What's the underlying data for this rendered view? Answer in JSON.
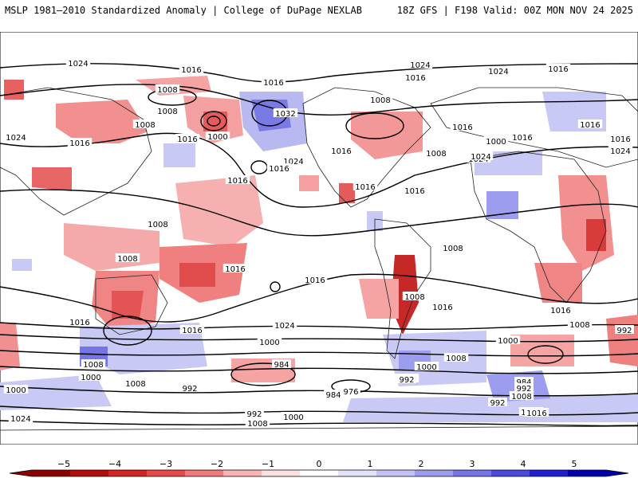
{
  "header": {
    "left_title": "MSLP 1981–2010 Standardized Anomaly | College of DuPage NEXLAB",
    "right_title": "18Z GFS | F198 Valid: 00Z MON NOV 24 2025"
  },
  "map": {
    "isobar_labels": [
      "1024",
      "1016",
      "1008",
      "1016",
      "1024",
      "1024",
      "1016",
      "1008",
      "1024",
      "1016",
      "1008",
      "1000",
      "1016",
      "1032",
      "1016",
      "1024",
      "1016",
      "1024",
      "1016",
      "1008",
      "1016",
      "1016",
      "1000",
      "1016",
      "1024",
      "1016",
      "1016",
      "1016",
      "1024",
      "1008",
      "1008",
      "1008",
      "1016",
      "1008",
      "1016",
      "1016",
      "1008",
      "1016",
      "1016",
      "1016",
      "1008",
      "1016",
      "1024",
      "992",
      "1000",
      "1000",
      "1008",
      "992",
      "984",
      "1008",
      "1008",
      "1000",
      "1000",
      "992",
      "1000",
      "984",
      "992",
      "1008",
      "1000",
      "976",
      "984",
      "992",
      "1016",
      "992",
      "1024",
      "1008",
      "1000",
      "1016"
    ]
  },
  "colorbar": {
    "ticks": [
      "−5",
      "−4",
      "−3",
      "−2",
      "−1",
      "0",
      "1",
      "2",
      "3",
      "4",
      "5"
    ],
    "colors": [
      "#8b0000",
      "#b50d0d",
      "#d62323",
      "#e84848",
      "#f37a7a",
      "#fbb3b3",
      "#fde0e0",
      "#ffffff",
      "#e2e2fb",
      "#c2c2f5",
      "#9d9def",
      "#7575e8",
      "#4a4adf",
      "#1f1fd6",
      "#0000b0"
    ]
  }
}
